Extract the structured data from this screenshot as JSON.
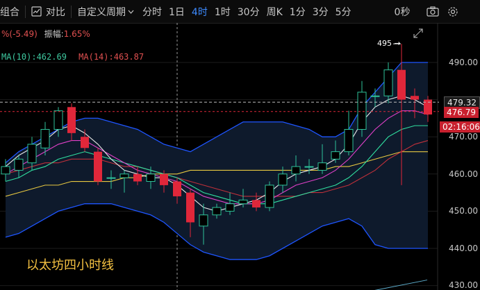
{
  "toolbar": {
    "combo_label": "组合",
    "compare_label": "对比",
    "custom_period_label": "自定义周期",
    "periods": [
      "分时",
      "1日",
      "4时",
      "1时",
      "30分",
      "周K",
      "1分",
      "3分",
      "5分"
    ],
    "active_period": "4时",
    "seconds_label": "0秒",
    "icons": [
      "grid-icon",
      "compare-icon",
      "chevron-down-icon",
      "camera-icon",
      "settings-icon"
    ]
  },
  "indicator_line1": {
    "change": "%(-5.49)",
    "amplitude_label": "振幅:",
    "amplitude_value": "1.65%"
  },
  "indicator_line2": {
    "ma10": "MA(10):462.69",
    "ma14": "MA(14):463.87"
  },
  "annotation_high": "495",
  "price_axis": [
    "490.00",
    "480.00",
    "470.00",
    "460.00",
    "450.00",
    "440.00",
    "430.00"
  ],
  "current_price_tag": "479.32",
  "last_price_tag": "476.79",
  "countdown_tag": "02:16:06",
  "caption": "以太坊四小时线",
  "colors": {
    "up": "#2ec29a",
    "down": "#e0273a",
    "boll_band": "#1e55ff",
    "band_fill": "#0e1a2c",
    "ma_white": "#e8e8e8",
    "ma_magenta": "#e040c8",
    "ma_green": "#30e0a0",
    "ma_yellow": "#e8c840",
    "ma_red": "#c0303a",
    "caption": "#f5c242",
    "active_tab": "#3d8bff",
    "ma14_text": "#e05050",
    "ma10_text": "#3ec9a0"
  },
  "candles": [
    [
      460,
      462,
      464,
      458
    ],
    [
      461,
      464,
      465,
      459
    ],
    [
      463,
      468,
      470,
      461
    ],
    [
      467,
      472,
      474,
      465
    ],
    [
      472,
      477,
      478,
      470
    ],
    [
      478,
      471,
      479,
      469
    ],
    [
      470,
      467,
      472,
      466
    ],
    [
      466,
      458,
      467,
      457
    ],
    [
      459,
      459,
      461,
      456
    ],
    [
      459,
      460,
      461,
      455
    ],
    [
      460,
      458,
      462,
      457
    ],
    [
      458,
      460,
      462,
      456
    ],
    [
      460,
      457,
      461,
      455
    ],
    [
      458,
      454,
      459,
      452
    ],
    [
      455,
      447,
      456,
      443
    ],
    [
      446,
      449,
      452,
      441
    ],
    [
      449,
      451,
      452,
      448
    ],
    [
      450,
      452,
      455,
      449
    ],
    [
      452,
      453,
      456,
      451
    ],
    [
      453,
      451,
      455,
      450
    ],
    [
      451,
      457,
      458,
      450
    ],
    [
      457,
      460,
      462,
      455
    ],
    [
      460,
      462,
      465,
      458
    ],
    [
      462,
      462,
      464,
      460
    ],
    [
      461,
      463,
      468,
      460
    ],
    [
      464,
      466,
      469,
      463
    ],
    [
      466,
      472,
      477,
      465
    ],
    [
      472,
      482,
      485,
      470
    ],
    [
      481,
      481,
      483,
      478
    ],
    [
      481,
      488,
      490,
      479
    ],
    [
      488,
      480,
      495,
      457
    ],
    [
      481,
      480,
      483,
      475
    ],
    [
      480,
      476,
      481,
      474
    ]
  ],
  "boll_upper": [
    463,
    466,
    468,
    470,
    472,
    474,
    475,
    475,
    474,
    473,
    472,
    470,
    468,
    467,
    466,
    468,
    470,
    472,
    474,
    474,
    474,
    474,
    473,
    472,
    470,
    470,
    472,
    478,
    482,
    486,
    490,
    490,
    490
  ],
  "boll_lower": [
    443,
    444,
    446,
    448,
    450,
    451,
    452,
    452,
    452,
    451,
    450,
    449,
    447,
    444,
    441,
    439,
    438,
    437,
    437,
    437,
    438,
    440,
    442,
    444,
    446,
    447,
    448,
    446,
    441,
    440,
    440,
    440,
    440
  ],
  "ma_white": [
    462,
    465,
    467,
    469,
    472,
    473,
    471,
    468,
    464,
    461,
    460,
    459,
    459,
    457,
    454,
    451,
    450,
    451,
    452,
    453,
    455,
    458,
    460,
    461,
    462,
    464,
    468,
    474,
    478,
    480,
    481,
    480,
    478
  ],
  "ma_magenta": [
    460,
    462,
    464,
    466,
    468,
    469,
    469,
    467,
    465,
    463,
    461,
    460,
    459,
    458,
    456,
    454,
    453,
    452,
    452,
    452,
    453,
    455,
    457,
    458,
    459,
    461,
    464,
    468,
    472,
    475,
    477,
    477,
    476
  ],
  "ma_green": [
    458,
    459,
    461,
    462,
    464,
    465,
    466,
    465,
    464,
    463,
    462,
    461,
    460,
    459,
    457,
    455,
    454,
    453,
    452,
    452,
    452,
    453,
    454,
    455,
    456,
    457,
    459,
    462,
    466,
    470,
    472,
    473,
    473
  ],
  "ma_red": [
    460,
    461,
    462,
    463,
    463,
    464,
    464,
    464,
    463,
    462,
    462,
    461,
    460,
    459,
    458,
    457,
    456,
    455,
    454,
    454,
    454,
    454,
    454,
    455,
    455,
    456,
    457,
    459,
    461,
    464,
    466,
    468,
    469
  ],
  "ma_yellow": [
    454,
    455,
    456,
    457,
    457,
    458,
    458,
    458,
    458,
    459,
    459,
    460,
    460,
    460,
    461,
    461,
    461,
    461,
    461,
    461,
    461,
    461,
    461,
    461,
    461,
    462,
    462,
    463,
    464,
    465,
    466,
    466,
    466
  ]
}
